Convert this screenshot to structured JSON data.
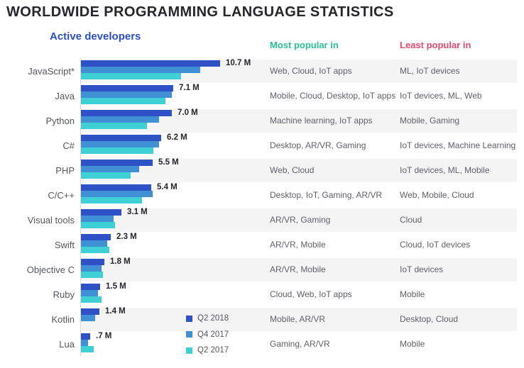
{
  "title": "WORLDWIDE PROGRAMMING LANGUAGE STATISTICS",
  "columns": {
    "chart_header": "Active developers",
    "most_header": "Most popular in",
    "least_header": "Least popular in"
  },
  "colors": {
    "q2_2018": "#2e51c6",
    "q4_2017": "#3f90d4",
    "q2_2017": "#3fd0d6",
    "title_text": "#26262b",
    "chart_header_text": "#2b50c8",
    "most_header_text": "#29bf95",
    "least_header_text": "#e9486f",
    "row_stripe": "#f4f4f5"
  },
  "legend": [
    {
      "label": "Q2 2018",
      "color": "#2e51c6"
    },
    {
      "label": "Q4 2017",
      "color": "#3f90d4"
    },
    {
      "label": "Q2 2017",
      "color": "#3fd0d6"
    }
  ],
  "rows": [
    {
      "language": "JavaScript*",
      "value_label": "10.7 M",
      "values": [
        10.7,
        9.2,
        7.7
      ],
      "most": "Web, Cloud, IoT apps",
      "least": "ML, IoT devices"
    },
    {
      "language": "Java",
      "value_label": "7.1 M",
      "values": [
        7.1,
        7.0,
        6.5
      ],
      "most": "Mobile, Cloud, Desktop, IoT apps",
      "least": "IoT devices, ML, Web"
    },
    {
      "language": "Python",
      "value_label": "7.0 M",
      "values": [
        7.0,
        6.0,
        5.1
      ],
      "most": "Machine learning, IoT apps",
      "least": "Mobile, Gaming"
    },
    {
      "language": "C#",
      "value_label": "6.2 M",
      "values": [
        6.2,
        6.0,
        5.6
      ],
      "most": "Desktop, AR/VR, Gaming",
      "least": "IoT devices, Machine Learning"
    },
    {
      "language": "PHP",
      "value_label": "5.5 M",
      "values": [
        5.5,
        4.5,
        3.8
      ],
      "most": "Web, Cloud",
      "least": "IoT devices, ML, Mobile"
    },
    {
      "language": "C/C++",
      "value_label": "5.4 M",
      "values": [
        5.4,
        5.5,
        4.7
      ],
      "most": "Desktop, IoT, Gaming, AR/VR",
      "least": "Web, Mobile, Cloud"
    },
    {
      "language": "Visual tools",
      "value_label": "3.1 M",
      "values": [
        3.1,
        2.5,
        2.6
      ],
      "most": "AR/VR, Gaming",
      "least": "Cloud"
    },
    {
      "language": "Swift",
      "value_label": "2.3 M",
      "values": [
        2.3,
        2.0,
        2.2
      ],
      "most": "AR/VR, Mobile",
      "least": "Cloud, IoT devices"
    },
    {
      "language": "Objective C",
      "value_label": "1.8 M",
      "values": [
        1.8,
        1.6,
        1.7
      ],
      "most": "AR/VR, Mobile",
      "least": "IoT devices"
    },
    {
      "language": "Ruby",
      "value_label": "1.5 M",
      "values": [
        1.5,
        1.3,
        1.6
      ],
      "most": "Cloud, Web, IoT apps",
      "least": "Mobile"
    },
    {
      "language": "Kotlin",
      "value_label": "1.4 M",
      "values": [
        1.4,
        1.1,
        null
      ],
      "most": "Mobile, AR/VR",
      "least": "Desktop, Cloud"
    },
    {
      "language": "Lua",
      "value_label": ".7 M",
      "values": [
        0.7,
        0.55,
        1.0
      ],
      "most": "Gaming, AR/VR",
      "least": "Mobile"
    }
  ],
  "chart_data": {
    "type": "bar",
    "orientation": "horizontal",
    "title": "Active developers",
    "unit": "millions of developers",
    "categories": [
      "JavaScript*",
      "Java",
      "Python",
      "C#",
      "PHP",
      "C/C++",
      "Visual tools",
      "Swift",
      "Objective C",
      "Ruby",
      "Kotlin",
      "Lua"
    ],
    "series": [
      {
        "name": "Q2 2018",
        "color": "#2e51c6",
        "values": [
          10.7,
          7.1,
          7.0,
          6.2,
          5.5,
          5.4,
          3.1,
          2.3,
          1.8,
          1.5,
          1.4,
          0.7
        ]
      },
      {
        "name": "Q4 2017",
        "color": "#3f90d4",
        "values": [
          9.2,
          7.0,
          6.0,
          6.0,
          4.5,
          5.5,
          2.5,
          2.0,
          1.6,
          1.3,
          1.1,
          0.55
        ]
      },
      {
        "name": "Q2 2017",
        "color": "#3fd0d6",
        "values": [
          7.7,
          6.5,
          5.1,
          5.6,
          3.8,
          4.7,
          2.6,
          2.2,
          1.7,
          1.6,
          null,
          1.0
        ]
      }
    ],
    "data_labels": [
      "10.7 M",
      "7.1 M",
      "7.0 M",
      "6.2 M",
      "5.5 M",
      "5.4 M",
      "3.1 M",
      "2.3 M",
      "1.8 M",
      "1.5 M",
      "1.4 M",
      ".7 M"
    ],
    "xlim": [
      0,
      11.5
    ],
    "grid": false,
    "legend_position": "inside-bottom-right",
    "companion_columns": {
      "most_popular_in": [
        "Web, Cloud, IoT apps",
        "Mobile, Cloud, Desktop, IoT apps",
        "Machine learning, IoT apps",
        "Desktop, AR/VR, Gaming",
        "Web, Cloud",
        "Desktop, IoT, Gaming, AR/VR",
        "AR/VR, Gaming",
        "AR/VR, Mobile",
        "AR/VR, Mobile",
        "Cloud, Web, IoT apps",
        "Mobile, AR/VR",
        "Gaming, AR/VR"
      ],
      "least_popular_in": [
        "ML, IoT devices",
        "IoT devices, ML, Web",
        "Mobile, Gaming",
        "IoT devices, Machine Learning",
        "IoT devices, ML, Mobile",
        "Web, Mobile, Cloud",
        "Cloud",
        "Cloud, IoT devices",
        "IoT devices",
        "Mobile",
        "Desktop, Cloud",
        "Mobile"
      ]
    }
  }
}
